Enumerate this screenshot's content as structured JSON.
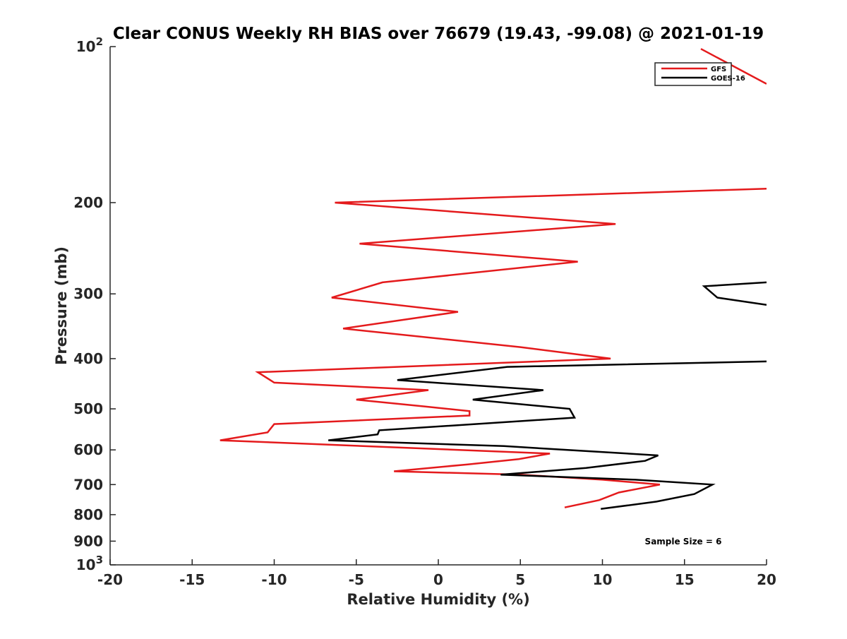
{
  "chart_data": {
    "type": "line",
    "title": "Clear CONUS Weekly RH BIAS over 76679 (19.43, -99.08) @ 2021-01-19",
    "xlabel": "Relative Humidity (%)",
    "ylabel": "Pressure (mb)",
    "xlim": [
      -20,
      20
    ],
    "ylim": [
      100,
      1000
    ],
    "yscale": "log",
    "y_reversed": true,
    "grid": false,
    "legend_position": "top-right",
    "x_ticks": [
      -20,
      -15,
      -10,
      -5,
      0,
      5,
      10,
      15,
      20
    ],
    "x_tick_labels": [
      "-20",
      "-15",
      "-10",
      "-5",
      "0",
      "5",
      "10",
      "15",
      "20"
    ],
    "y_ticks": [
      200,
      300,
      400,
      500,
      600,
      700,
      800,
      900
    ],
    "y_tick_labels": [
      "200",
      "300",
      "400",
      "500",
      "600",
      "700",
      "800",
      "900"
    ],
    "y_top_label": {
      "base": "10",
      "exp": "2"
    },
    "y_bottom_label": {
      "base": "10",
      "exp": "3"
    },
    "annotation": "Sample Size = 6",
    "series": [
      {
        "name": "GFS",
        "color": "#e41a1c",
        "points": [
          [
            7.7,
            775
          ],
          [
            9.8,
            750
          ],
          [
            11,
            725
          ],
          [
            13.5,
            700
          ],
          [
            10,
            685
          ],
          [
            5,
            670
          ],
          [
            -2.7,
            660
          ],
          [
            1.8,
            640
          ],
          [
            4.9,
            625
          ],
          [
            6.8,
            610
          ],
          [
            -13.3,
            575
          ],
          [
            -10.4,
            555
          ],
          [
            -10,
            535
          ],
          [
            1.9,
            515
          ],
          [
            1.9,
            505
          ],
          [
            -0.8,
            495
          ],
          [
            -5,
            480
          ],
          [
            -0.6,
            460
          ],
          [
            -10,
            445
          ],
          [
            -11,
            425
          ],
          [
            10.5,
            400
          ],
          [
            5,
            380
          ],
          [
            -5.8,
            350
          ],
          [
            1.2,
            325
          ],
          [
            -6.5,
            305
          ],
          [
            -3.4,
            285
          ],
          [
            8.5,
            260
          ],
          [
            -4.8,
            240
          ],
          [
            10.8,
            220
          ],
          [
            -6.3,
            200
          ],
          [
            20,
            188
          ]
        ],
        "points_top": [
          [
            16,
            101
          ],
          [
            20,
            118
          ]
        ]
      },
      {
        "name": "GOES-16",
        "color": "#000000",
        "points": [
          [
            9.9,
            780
          ],
          [
            13.3,
            755
          ],
          [
            15.6,
            730
          ],
          [
            16.7,
            700
          ],
          [
            12,
            685
          ],
          [
            3.8,
            670
          ],
          [
            9,
            650
          ],
          [
            12.6,
            630
          ],
          [
            13.4,
            615
          ],
          [
            4,
            590
          ],
          [
            -6.7,
            575
          ],
          [
            -3.7,
            560
          ],
          [
            -3.6,
            550
          ],
          [
            8.3,
            520
          ],
          [
            8,
            500
          ],
          [
            2.1,
            480
          ],
          [
            6.4,
            460
          ],
          [
            -2.5,
            440
          ],
          [
            4.2,
            415
          ],
          [
            20,
            405
          ]
        ],
        "points_upper": [
          [
            20,
            315
          ],
          [
            17,
            305
          ],
          [
            16.2,
            290
          ],
          [
            20,
            285
          ]
        ]
      }
    ]
  }
}
